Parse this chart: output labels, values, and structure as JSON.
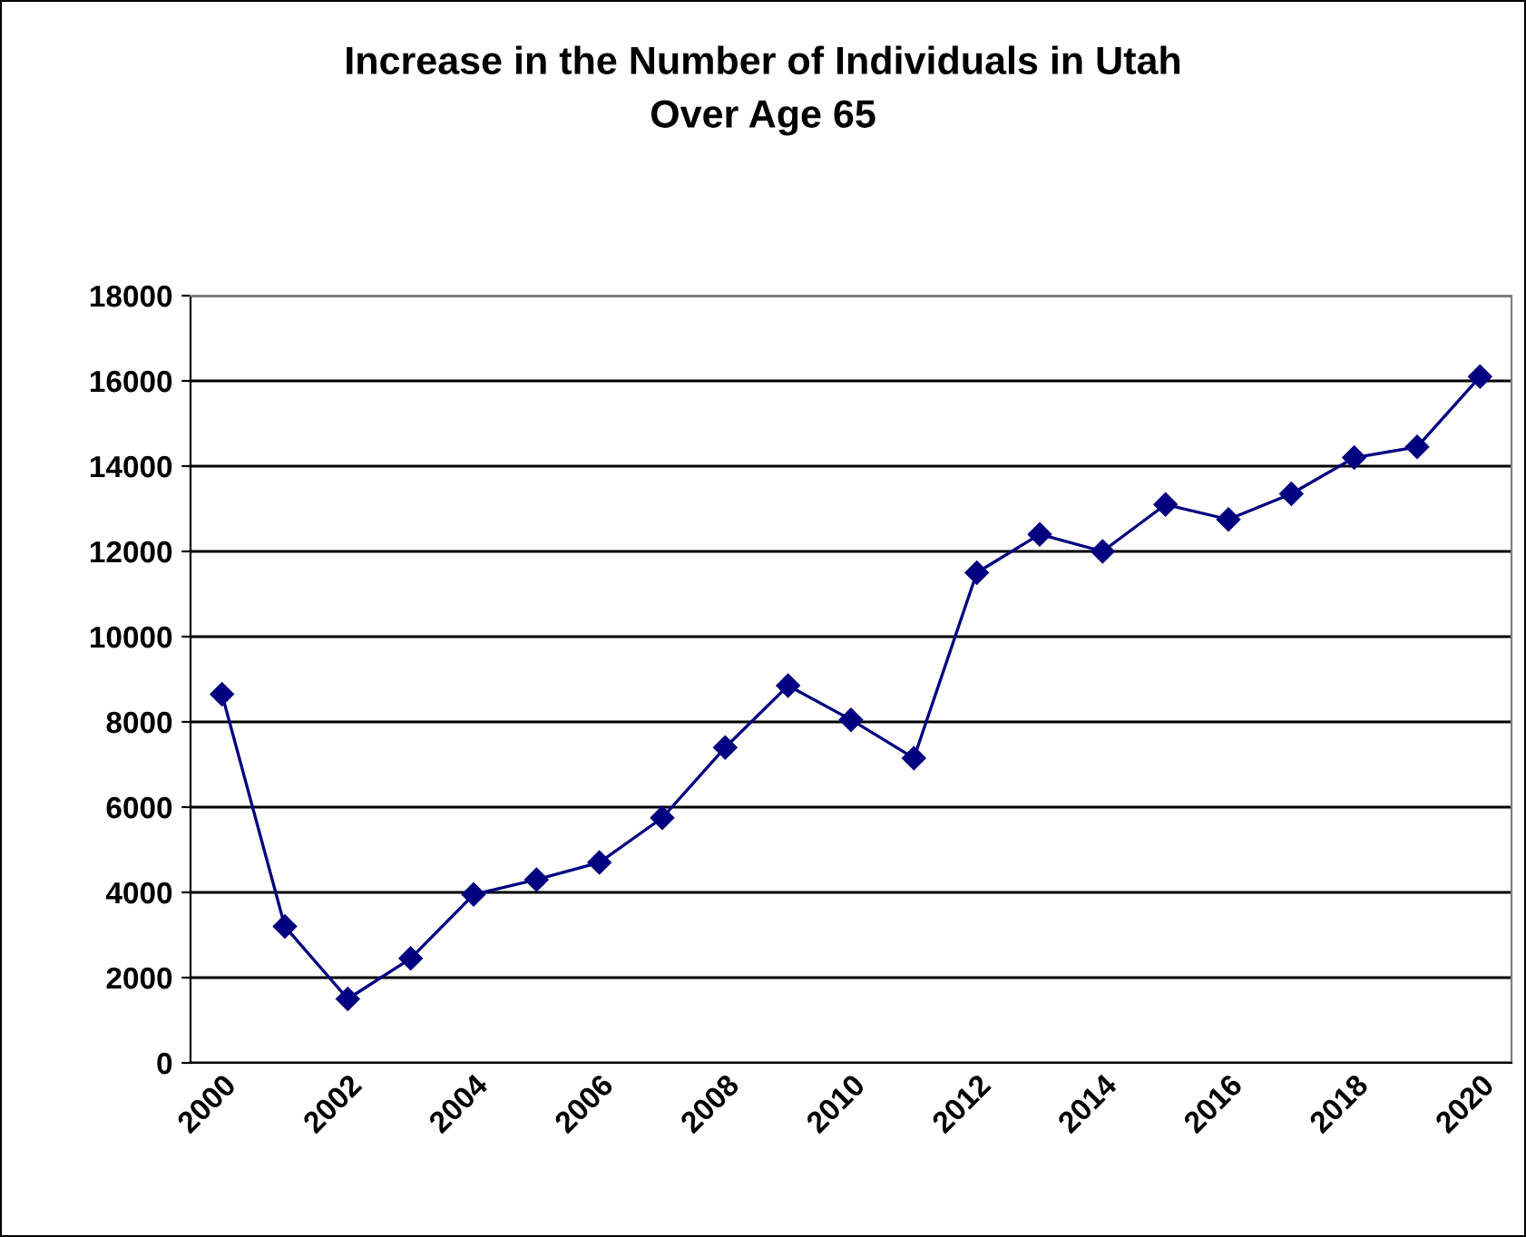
{
  "chart_data": {
    "type": "line",
    "title": "Increase in the Number of Individuals in Utah\nOver Age 65",
    "categories": [
      "2000",
      null,
      "2002",
      null,
      "2004",
      null,
      "2006",
      null,
      "2008",
      null,
      "2010",
      null,
      "2012",
      null,
      "2014",
      null,
      "2016",
      null,
      "2018",
      null,
      "2020"
    ],
    "series": [
      {
        "color": "#000080",
        "values": [
          8650,
          3200,
          1500,
          2450,
          3950,
          4300,
          4700,
          5750,
          7400,
          8850,
          8050,
          7150,
          11500,
          12400,
          12000,
          13100,
          12750,
          13350,
          14200,
          14450,
          16100
        ]
      }
    ],
    "ylim": [
      0,
      18000
    ],
    "yticks": [
      0,
      2000,
      4000,
      6000,
      8000,
      10000,
      12000,
      14000,
      16000,
      18000
    ],
    "grid": "y",
    "legend": false,
    "marker": "diamond",
    "line_style": "solid"
  }
}
